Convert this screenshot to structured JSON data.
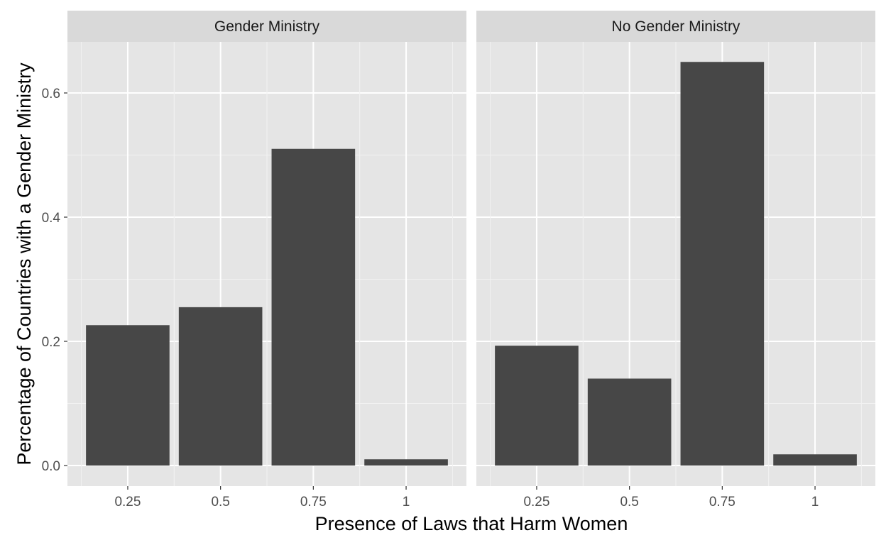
{
  "chart_data": {
    "type": "bar",
    "facet": true,
    "xlabel": "Presence of Laws that Harm Women",
    "ylabel": "Percentage of Countries with a Gender Ministry",
    "categories": [
      "0.25",
      "0.5",
      "0.75",
      "1"
    ],
    "ylim": [
      0,
      0.72
    ],
    "yticks": [
      "0.0",
      "0.2",
      "0.4",
      "0.6"
    ],
    "grid": true,
    "bar_color": "#474747",
    "panel_background": "#e5e5e5",
    "strip_background": "#d9d9d9",
    "panels": [
      {
        "title": "Gender Ministry",
        "values": [
          0.226,
          0.255,
          0.51,
          0.01
        ]
      },
      {
        "title": "No Gender Ministry",
        "values": [
          0.193,
          0.14,
          0.65,
          0.018
        ]
      }
    ]
  }
}
